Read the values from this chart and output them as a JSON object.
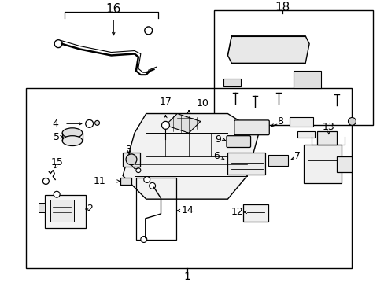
{
  "background_color": "#ffffff",
  "line_color": "#000000",
  "text_color": "#000000",
  "fig_width": 4.89,
  "fig_height": 3.6,
  "dpi": 100,
  "boxes": {
    "main": [
      30,
      310,
      455,
      305
    ],
    "hose_area": [
      0,
      0,
      489,
      360
    ],
    "sub18": [
      268,
      8,
      212,
      152
    ]
  }
}
